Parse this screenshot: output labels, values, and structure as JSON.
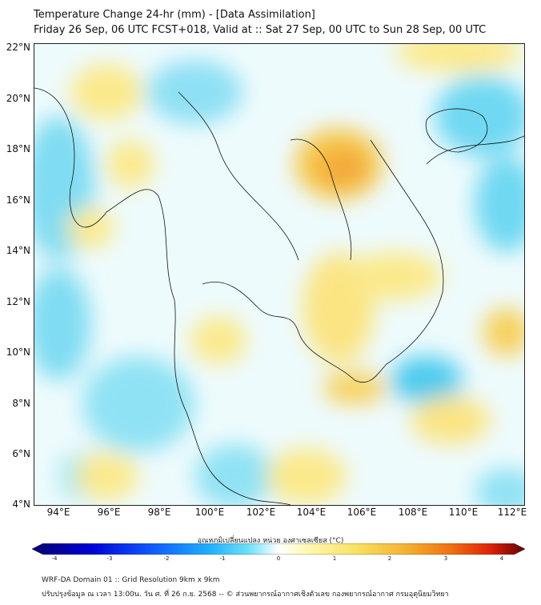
{
  "header": {
    "title": "Temperature Change 24-hr (mm) - [Data Assimilation]",
    "subtitle": "Friday 26 Sep, 06 UTC FCST+018, Valid at :: Sat 27 Sep, 00 UTC to Sun 28 Sep, 00 UTC"
  },
  "map": {
    "lon_ticks": [
      "94°E",
      "96°E",
      "98°E",
      "100°E",
      "102°E",
      "104°E",
      "106°E",
      "108°E",
      "110°E",
      "112°E"
    ],
    "lat_ticks": [
      "22°N",
      "20°N",
      "18°N",
      "16°N",
      "14°N",
      "12°N",
      "10°N",
      "8°N",
      "6°N",
      "4°N"
    ],
    "extent": {
      "lon_min": 93.1,
      "lon_max": 112.5,
      "lat_min": 4.0,
      "lat_max": 22.2
    },
    "colors": {
      "neutral": "#ffffff",
      "cool": "#5ad4f0",
      "warm": "#f5c842",
      "hot": "#f0a030"
    }
  },
  "colorbar": {
    "label": "อุณหภูมิเปลี่ยนแปลง หน่วย องศาเซลเซียส (°C)",
    "ticks": [
      "-4",
      "-3",
      "-2",
      "-1",
      "0",
      "1",
      "2",
      "3",
      "4"
    ],
    "range": [
      -4,
      4
    ],
    "colors": [
      "#08006e",
      "#0000d8",
      "#1060ff",
      "#20a8ff",
      "#40d8f8",
      "#a8f0fa",
      "#ffffff",
      "#fff8b0",
      "#f8e060",
      "#f5b030",
      "#f07010",
      "#e02008",
      "#a00008",
      "#600000"
    ]
  },
  "footer": {
    "line1": "WRF-DA Domain 01 :: Grid Resolution 9km x 9km",
    "line2": "ปรับปรุงข้อมูล ณ เวลา 13:00น. วัน ศ. ที่ 26 ก.ย. 2568 -- © ส่วนพยากรณ์อากาศเชิงตัวเลข กองพยากรณ์อากาศ กรมอุตุนิยมวิทยา"
  }
}
